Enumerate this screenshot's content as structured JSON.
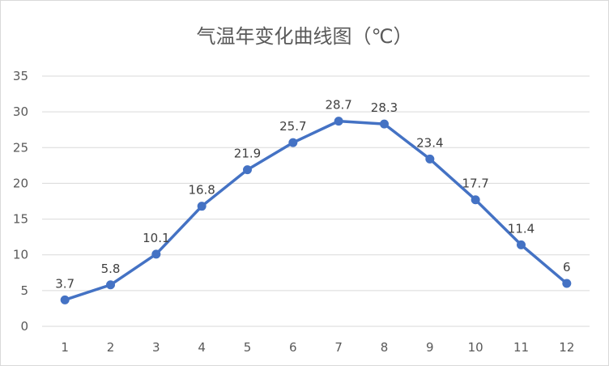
{
  "chart_data": {
    "type": "line",
    "title": "气温年变化曲线图（℃）",
    "xlabel": "",
    "ylabel": "",
    "categories": [
      "1",
      "2",
      "3",
      "4",
      "5",
      "6",
      "7",
      "8",
      "9",
      "10",
      "11",
      "12"
    ],
    "series": [
      {
        "values": [
          3.7,
          5.8,
          10.1,
          16.8,
          21.9,
          25.7,
          28.7,
          28.3,
          23.4,
          17.7,
          11.4,
          6
        ]
      }
    ],
    "data_labels": [
      "3.7",
      "5.8",
      "10.1",
      "16.8",
      "21.9",
      "25.7",
      "28.7",
      "28.3",
      "23.4",
      "17.7",
      "11.4",
      "6"
    ],
    "ylim": [
      0,
      35
    ],
    "yticks": [
      "0",
      "5",
      "10",
      "15",
      "20",
      "25",
      "30",
      "35"
    ],
    "grid": true,
    "legend": "none",
    "colors": {
      "line": "#4472c4",
      "grid": "#d9d9d9",
      "text": "#595959"
    }
  }
}
